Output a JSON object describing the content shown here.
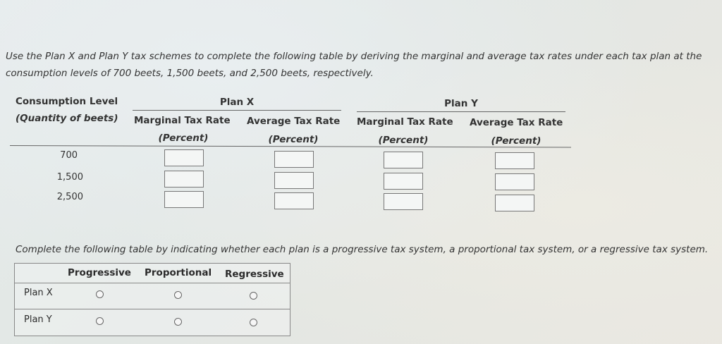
{
  "instruction_text": "Use the Plan X and Plan Y tax schemes to complete the following table by deriving the marginal and average tax rates under each tax plan at the consumption levels of 700 beets, 1,500 beets, and 2,500 beets, respectively.",
  "table1": {
    "col_consumption_line1": "Consumption Level",
    "col_consumption_line2": "(Quantity of beets)",
    "plan_x_label": "Plan X",
    "plan_y_label": "Plan Y",
    "marginal_label": "Marginal Tax Rate",
    "average_label": "Average Tax Rate",
    "percent_label": "(Percent)",
    "rows": [
      {
        "quantity": "700"
      },
      {
        "quantity": "1,500"
      },
      {
        "quantity": "2,500"
      }
    ]
  },
  "question2_text": "Complete the following table by indicating whether each plan is a progressive tax system, a proportional tax system, or a regressive tax system.",
  "table2": {
    "columns": [
      "Progressive",
      "Proportional",
      "Regressive"
    ],
    "rows": [
      {
        "label": "Plan X",
        "selected": null
      },
      {
        "label": "Plan Y",
        "selected": null
      }
    ]
  }
}
